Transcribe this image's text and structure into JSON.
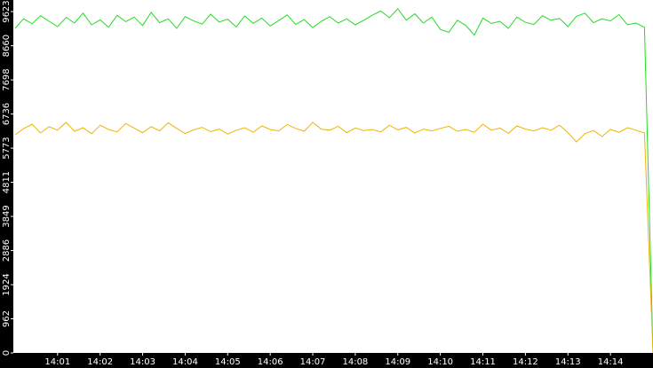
{
  "chart_data": {
    "type": "line",
    "x": [
      0,
      0.2,
      0.4,
      0.6,
      0.8,
      1,
      1.2,
      1.4,
      1.6,
      1.8,
      2,
      2.2,
      2.4,
      2.6,
      2.8,
      3,
      3.2,
      3.4,
      3.6,
      3.8,
      4,
      4.2,
      4.4,
      4.6,
      4.8,
      5,
      5.2,
      5.4,
      5.6,
      5.8,
      6,
      6.2,
      6.4,
      6.6,
      6.8,
      7,
      7.2,
      7.4,
      7.6,
      7.8,
      8,
      8.2,
      8.4,
      8.6,
      8.8,
      9,
      9.2,
      9.4,
      9.6,
      9.8,
      10,
      10.2,
      10.4,
      10.6,
      10.8,
      11,
      11.2,
      11.4,
      11.6,
      11.8,
      12,
      12.2,
      12.4,
      12.6,
      12.8,
      13,
      13.2,
      13.4,
      13.6,
      13.8,
      14,
      14.2,
      14.4,
      14.6,
      14.8,
      15
    ],
    "series": [
      {
        "color": "#22dd22",
        "values": [
          9150,
          9420,
          9280,
          9510,
          9350,
          9200,
          9460,
          9300,
          9580,
          9250,
          9390,
          9180,
          9520,
          9340,
          9470,
          9230,
          9600,
          9310,
          9420,
          9150,
          9480,
          9360,
          9270,
          9550,
          9330,
          9410,
          9190,
          9500,
          9290,
          9440,
          9220,
          9370,
          9530,
          9260,
          9400,
          9170,
          9350,
          9480,
          9300,
          9420,
          9250,
          9380,
          9520,
          9640,
          9450,
          9700,
          9380,
          9560,
          9300,
          9470,
          9120,
          9040,
          9380,
          9230,
          8960,
          9440,
          9290,
          9350,
          9150,
          9470,
          9320,
          9260,
          9510,
          9380,
          9430,
          9200,
          9490,
          9580,
          9310,
          9420,
          9360,
          9540,
          9250,
          9300,
          9180,
          0
        ]
      },
      {
        "color": "#f0b400",
        "values": [
          6150,
          6320,
          6450,
          6200,
          6380,
          6280,
          6500,
          6250,
          6350,
          6180,
          6420,
          6300,
          6230,
          6470,
          6340,
          6210,
          6380,
          6260,
          6490,
          6330,
          6190,
          6290,
          6360,
          6240,
          6310,
          6170,
          6280,
          6350,
          6220,
          6400,
          6300,
          6260,
          6440,
          6330,
          6250,
          6500,
          6310,
          6280,
          6390,
          6210,
          6340,
          6270,
          6300,
          6230,
          6420,
          6290,
          6360,
          6200,
          6310,
          6260,
          6330,
          6390,
          6250,
          6300,
          6220,
          6450,
          6280,
          6340,
          6190,
          6400,
          6310,
          6260,
          6350,
          6280,
          6420,
          6210,
          5950,
          6180,
          6270,
          6100,
          6300,
          6220,
          6350,
          6280,
          6200,
          0
        ]
      }
    ],
    "xlim": [
      -0.04,
      15
    ],
    "xticks": [
      {
        "value": 1,
        "label": "14:01"
      },
      {
        "value": 2,
        "label": "14:02"
      },
      {
        "value": 3,
        "label": "14:03"
      },
      {
        "value": 4,
        "label": "14:04"
      },
      {
        "value": 5,
        "label": "14:05"
      },
      {
        "value": 6,
        "label": "14:06"
      },
      {
        "value": 7,
        "label": "14:07"
      },
      {
        "value": 8,
        "label": "14:08"
      },
      {
        "value": 9,
        "label": "14:09"
      },
      {
        "value": 10,
        "label": "14:10"
      },
      {
        "value": 11,
        "label": "14:11"
      },
      {
        "value": 12,
        "label": "14:12"
      },
      {
        "value": 13,
        "label": "14:13"
      },
      {
        "value": 14,
        "label": "14:14"
      }
    ],
    "ylim": [
      0,
      9950
    ],
    "yticks": [
      0,
      962,
      1924,
      2886,
      3849,
      4811,
      5773,
      6736,
      7698,
      8660,
      9623
    ]
  }
}
